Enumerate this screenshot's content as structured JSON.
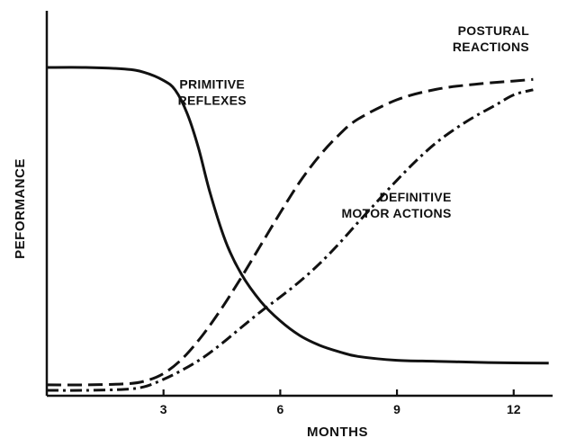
{
  "chart_data": {
    "type": "line",
    "title": "",
    "xlabel": "MONTHS",
    "ylabel": "PEFORMANCE",
    "xlim": [
      0,
      13
    ],
    "ylim": [
      0,
      100
    ],
    "xticks": [
      3,
      6,
      9,
      12
    ],
    "yticks": [],
    "grid": false,
    "legend": "none",
    "series": [
      {
        "name": "PRIMITIVE REFLEXES",
        "style": "solid",
        "x": [
          0,
          1,
          2,
          2.5,
          3,
          3.3,
          3.6,
          3.9,
          4.2,
          4.6,
          5,
          5.5,
          6,
          6.5,
          7,
          7.5,
          8,
          9,
          10,
          11,
          12,
          12.9
        ],
        "y": [
          100,
          100,
          99.5,
          98.5,
          96,
          93,
          86,
          75,
          61,
          46,
          36,
          27.5,
          21.5,
          17,
          14,
          12,
          10.5,
          9.3,
          9,
          8.7,
          8.5,
          8.4
        ]
      },
      {
        "name": "POSTURAL REACTIONS",
        "style": "dash",
        "x": [
          0,
          1,
          2,
          2.5,
          3,
          3.5,
          4,
          4.5,
          5,
          5.5,
          6,
          6.5,
          7,
          7.5,
          8,
          9,
          10,
          11,
          12,
          12.5
        ],
        "y": [
          1.7,
          1.7,
          2,
          2.8,
          5.2,
          10,
          17,
          25.5,
          35,
          45,
          55,
          64.5,
          72.5,
          79,
          84,
          90,
          93.2,
          94.8,
          95.8,
          96.3
        ]
      },
      {
        "name": "DEFINITIVE MOTOR ACTIONS",
        "style": "dashdot",
        "x": [
          0,
          1,
          2,
          2.5,
          3,
          3.5,
          4,
          4.5,
          5,
          5.5,
          6,
          6.5,
          7,
          7.5,
          8,
          8.5,
          9,
          9.5,
          10,
          10.5,
          11,
          11.5,
          12,
          12.5
        ],
        "y": [
          0,
          0,
          0.3,
          1.1,
          3.4,
          6.4,
          10,
          14.5,
          19.5,
          24.4,
          28.9,
          33.7,
          39.1,
          45.3,
          52,
          58.6,
          65.1,
          71.2,
          76.6,
          81,
          84.8,
          88.1,
          91.5,
          93.1
        ]
      }
    ],
    "annotations": [
      {
        "lines": [
          "PRIMITIVE",
          "REFLEXES"
        ],
        "x": 4.25,
        "y": 93.5,
        "anchor": "middle",
        "series_index": 0
      },
      {
        "lines": [
          "POSTURAL",
          "REACTIONS"
        ],
        "x": 12.4,
        "y": 110,
        "anchor": "end",
        "series_index": 1
      },
      {
        "lines": [
          "DEFINITIVE",
          "MOTOR ACTIONS"
        ],
        "x": 10.4,
        "y": 58.5,
        "anchor": "end",
        "series_index": 2
      }
    ]
  }
}
